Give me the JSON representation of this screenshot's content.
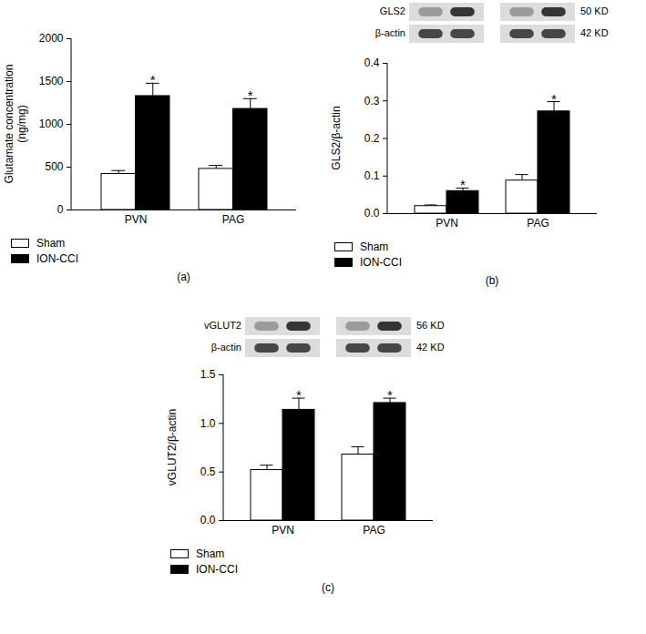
{
  "chart_data": [
    {
      "type": "bar",
      "panel_label": "(a)",
      "ylabel": "Glutamate concentration\n(ng/mg)",
      "categories": [
        "PVN",
        "PAG"
      ],
      "series": [
        {
          "name": "Sham",
          "color": "#ffffff",
          "values": [
            420,
            480
          ],
          "errors": [
            40,
            40
          ]
        },
        {
          "name": "ION-CCI",
          "color": "#000000",
          "values": [
            1330,
            1180
          ],
          "errors": [
            150,
            120
          ],
          "annotations": [
            "*",
            "*"
          ]
        }
      ],
      "ylim": [
        0,
        2000
      ],
      "yticks": [
        0,
        500,
        1000,
        1500,
        2000
      ],
      "legend": "bottom"
    },
    {
      "type": "bar",
      "panel_label": "(b)",
      "ylabel": "GLS2/β-actin",
      "categories": [
        "PVN",
        "PAG"
      ],
      "series": [
        {
          "name": "Sham",
          "color": "#ffffff",
          "values": [
            0.02,
            0.088
          ],
          "errors": [
            0.003,
            0.016
          ]
        },
        {
          "name": "ION-CCI",
          "color": "#000000",
          "values": [
            0.06,
            0.272
          ],
          "errors": [
            0.008,
            0.026
          ],
          "annotations": [
            "*",
            "*"
          ]
        }
      ],
      "ylim": [
        0,
        0.4
      ],
      "yticks": [
        {
          "value": 0,
          "label": "0.0"
        },
        0.1,
        0.2,
        0.3,
        0.4
      ],
      "legend": "bottom",
      "blot": {
        "rows": [
          {
            "label": "GLS2",
            "size": "50 KD"
          },
          {
            "label": "β-actin",
            "size": "42 KD"
          }
        ]
      }
    },
    {
      "type": "bar",
      "panel_label": "(c)",
      "ylabel": "vGLUT2/β-actin",
      "categories": [
        "PVN",
        "PAG"
      ],
      "series": [
        {
          "name": "Sham",
          "color": "#ffffff",
          "values": [
            0.52,
            0.68
          ],
          "errors": [
            0.05,
            0.08
          ]
        },
        {
          "name": "ION-CCI",
          "color": "#000000",
          "values": [
            1.14,
            1.21
          ],
          "errors": [
            0.12,
            0.05
          ],
          "annotations": [
            "*",
            "*"
          ]
        }
      ],
      "ylim": [
        0,
        1.5
      ],
      "yticks": [
        {
          "value": 0,
          "label": "0.0"
        },
        0.5,
        {
          "value": 1,
          "label": "1.0"
        },
        1.5
      ],
      "legend": "bottom",
      "blot": {
        "rows": [
          {
            "label": "vGLUT2",
            "size": "56 KD"
          },
          {
            "label": "β-actin",
            "size": "42 KD"
          }
        ]
      }
    }
  ]
}
